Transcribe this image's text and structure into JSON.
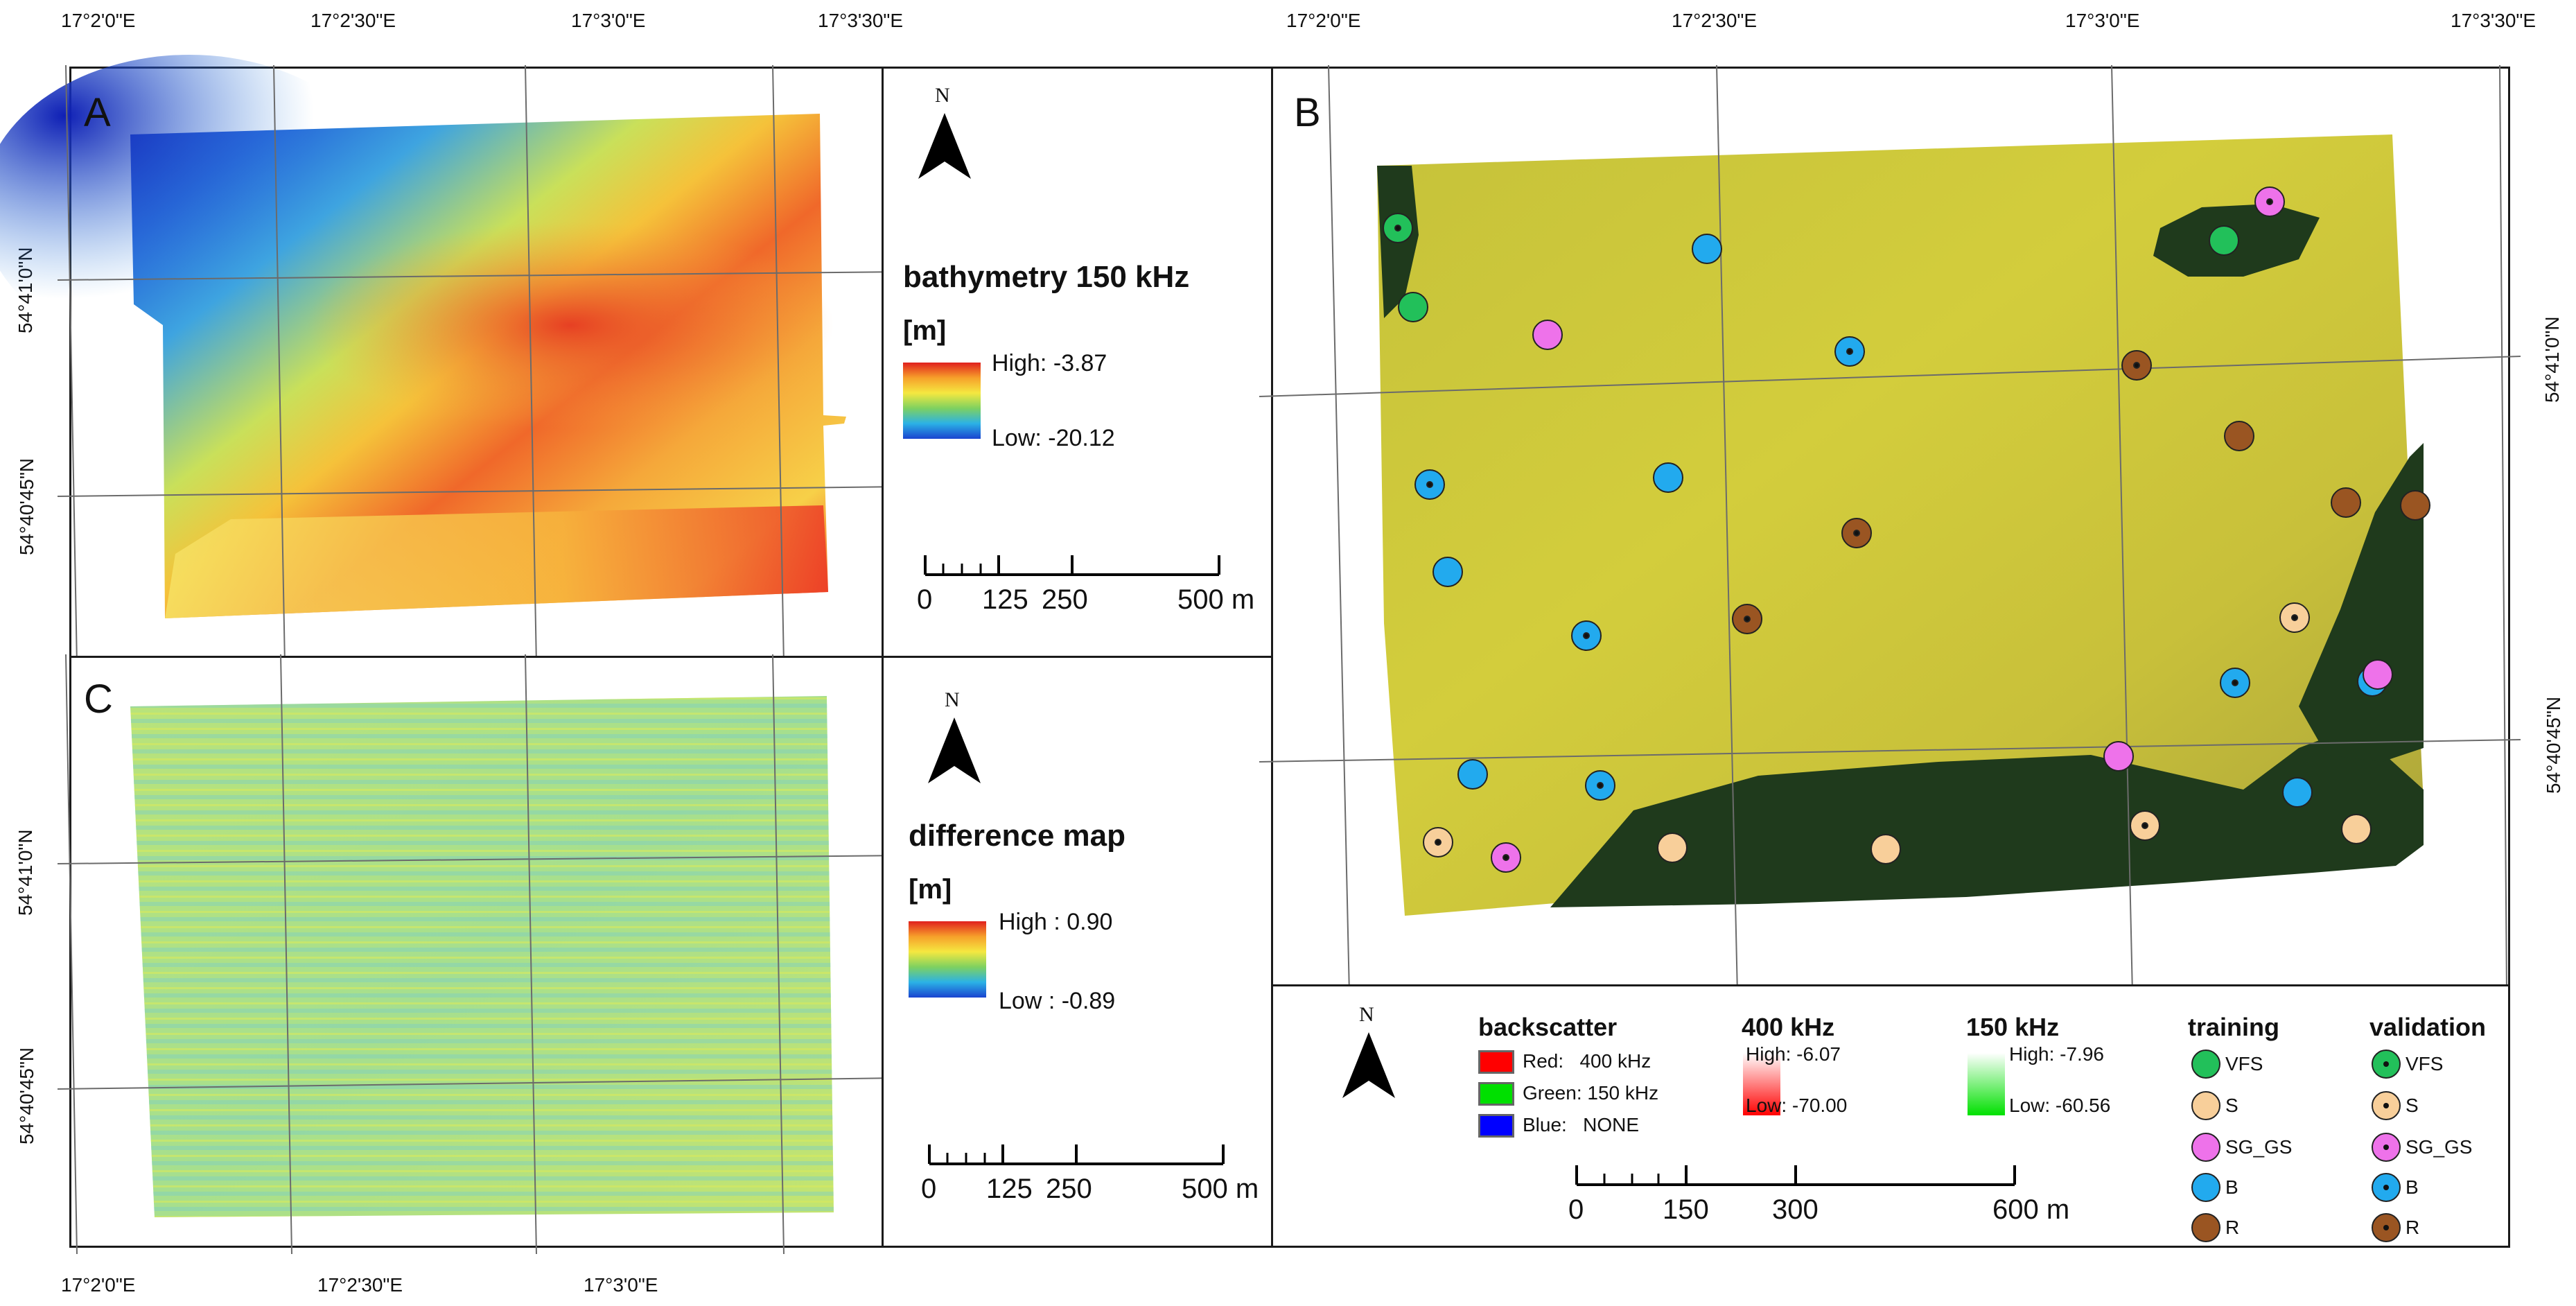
{
  "coords": {
    "top_left": [
      "17°2'0\"E",
      "17°2'30\"E",
      "17°3'0\"E",
      "17°3'30\"E"
    ],
    "top_right": [
      "17°2'0\"E",
      "17°2'30\"E",
      "17°3'0\"E",
      "17°3'30\"E"
    ],
    "bottom": [
      "17°2'0\"E",
      "17°2'30\"E",
      "17°3'0\"E"
    ],
    "left_A": [
      "54°41'0\"N",
      "54°40'45\"N"
    ],
    "left_C": [
      "54°41'0\"N",
      "54°40'45\"N"
    ],
    "right_B": [
      "54°41'0\"N",
      "54°40'45\"N"
    ]
  },
  "panels": {
    "A": {
      "letter": "A"
    },
    "B": {
      "letter": "B"
    },
    "C": {
      "letter": "C"
    }
  },
  "legend_A": {
    "north": "N",
    "title": "bathymetry 150 kHz",
    "unit": "[m]",
    "high": "High: -3.87",
    "low": "Low: -20.12",
    "scale": [
      "0",
      "125",
      "250",
      "500 m"
    ]
  },
  "legend_C": {
    "north": "N",
    "title": "difference map",
    "unit": "[m]",
    "high": "High : 0.90",
    "low": "Low : -0.89",
    "scale": [
      "0",
      "125",
      "250",
      "500 m"
    ]
  },
  "legend_B": {
    "north": "N",
    "backscatter": {
      "title": "backscatter",
      "items": [
        {
          "label": "Red:   400 kHz",
          "color": "#ff0000"
        },
        {
          "label": "Green: 150 kHz",
          "color": "#00e000"
        },
        {
          "label": "Blue:   NONE",
          "color": "#0000ff"
        }
      ]
    },
    "ramp400": {
      "title": "400 kHz",
      "high": "High: -6.07",
      "low": "Low: -70.00"
    },
    "ramp150": {
      "title": "150 kHz",
      "high": "High: -7.96",
      "low": "Low: -60.56"
    },
    "training": {
      "title": "training"
    },
    "validation": {
      "title": "validation"
    },
    "classes": [
      {
        "label": "VFS",
        "color": "#22c05a"
      },
      {
        "label": "S",
        "color": "#f8cf9a"
      },
      {
        "label": "SG_GS",
        "color": "#ee72ea"
      },
      {
        "label": "B",
        "color": "#22aaee"
      },
      {
        "label": "R",
        "color": "#9a5522"
      }
    ],
    "scale": [
      "0",
      "150",
      "300",
      "600 m"
    ]
  }
}
